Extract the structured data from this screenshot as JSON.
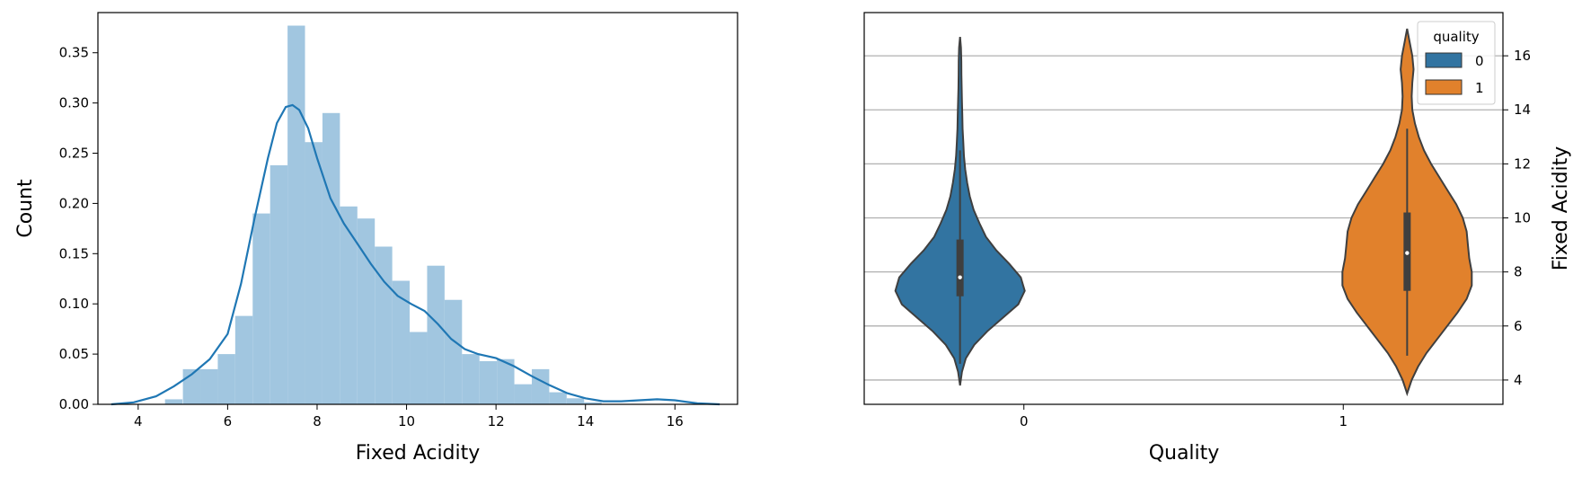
{
  "chart_data": [
    {
      "type": "histogram",
      "xlabel": "Fixed Acidity",
      "ylabel": "Count",
      "xlim": [
        3.1,
        17.4
      ],
      "ylim": [
        0,
        0.39
      ],
      "xticks": [
        4,
        6,
        8,
        10,
        12,
        14,
        16
      ],
      "yticks": [
        0.0,
        0.05,
        0.1,
        0.15,
        0.2,
        0.25,
        0.3,
        0.35
      ],
      "ytick_labels": [
        "0.00",
        "0.05",
        "0.10",
        "0.15",
        "0.20",
        "0.25",
        "0.30",
        "0.35"
      ],
      "bin_width": 0.39,
      "bins": [
        {
          "x": 4.6,
          "value": 0.005
        },
        {
          "x": 5.0,
          "value": 0.035
        },
        {
          "x": 5.39,
          "value": 0.035
        },
        {
          "x": 5.78,
          "value": 0.05
        },
        {
          "x": 6.17,
          "value": 0.088
        },
        {
          "x": 6.56,
          "value": 0.19
        },
        {
          "x": 6.95,
          "value": 0.238
        },
        {
          "x": 7.34,
          "value": 0.377
        },
        {
          "x": 7.73,
          "value": 0.261
        },
        {
          "x": 8.12,
          "value": 0.29
        },
        {
          "x": 8.51,
          "value": 0.197
        },
        {
          "x": 8.9,
          "value": 0.185
        },
        {
          "x": 9.29,
          "value": 0.157
        },
        {
          "x": 9.68,
          "value": 0.123
        },
        {
          "x": 10.07,
          "value": 0.072
        },
        {
          "x": 10.46,
          "value": 0.138
        },
        {
          "x": 10.85,
          "value": 0.104
        },
        {
          "x": 11.24,
          "value": 0.05
        },
        {
          "x": 11.63,
          "value": 0.043
        },
        {
          "x": 12.02,
          "value": 0.045
        },
        {
          "x": 12.41,
          "value": 0.02
        },
        {
          "x": 12.8,
          "value": 0.035
        },
        {
          "x": 13.19,
          "value": 0.012
        },
        {
          "x": 13.58,
          "value": 0.006
        },
        {
          "x": 13.97,
          "value": 0.002
        }
      ],
      "kde": {
        "x": [
          3.4,
          3.9,
          4.4,
          4.8,
          5.2,
          5.6,
          6.0,
          6.3,
          6.6,
          6.9,
          7.1,
          7.3,
          7.45,
          7.6,
          7.8,
          8.0,
          8.3,
          8.6,
          8.9,
          9.2,
          9.5,
          9.8,
          10.1,
          10.4,
          10.7,
          11.0,
          11.3,
          11.6,
          12.0,
          12.4,
          12.8,
          13.2,
          13.6,
          14.0,
          14.4,
          14.8,
          15.2,
          15.6,
          16.0,
          16.5,
          17.0
        ],
        "y": [
          0.0,
          0.002,
          0.008,
          0.018,
          0.03,
          0.045,
          0.07,
          0.12,
          0.185,
          0.245,
          0.28,
          0.296,
          0.298,
          0.293,
          0.275,
          0.245,
          0.205,
          0.18,
          0.16,
          0.14,
          0.122,
          0.108,
          0.1,
          0.093,
          0.08,
          0.065,
          0.055,
          0.05,
          0.046,
          0.038,
          0.028,
          0.019,
          0.011,
          0.006,
          0.003,
          0.003,
          0.004,
          0.005,
          0.004,
          0.001,
          0.0
        ]
      },
      "colors": {
        "bars": "#a1c6e0",
        "kde": "#1f77b4"
      }
    },
    {
      "type": "violin",
      "xlabel": "Quality",
      "ylabel": "Fixed Acidity",
      "categories": [
        "0",
        "1"
      ],
      "ylim": [
        3.1,
        17.6
      ],
      "yticks": [
        4,
        6,
        8,
        10,
        12,
        14,
        16
      ],
      "grid": true,
      "legend_title": "quality",
      "legend_position": "upper right",
      "series": [
        {
          "name": "0",
          "color": "#3274a1",
          "min": 4.6,
          "q1": 7.1,
          "median": 7.8,
          "q3": 9.2,
          "whisker_high": 12.5,
          "profile_y": [
            3.8,
            4.3,
            4.8,
            5.3,
            5.8,
            6.3,
            6.8,
            7.3,
            7.8,
            8.3,
            8.8,
            9.3,
            9.8,
            10.3,
            10.8,
            11.3,
            11.8,
            12.3,
            12.8,
            13.3,
            13.8,
            14.3,
            14.8,
            15.3,
            15.8,
            16.3,
            16.7
          ],
          "profile_halfwidth": [
            0.0,
            0.03,
            0.09,
            0.22,
            0.42,
            0.66,
            0.9,
            1.0,
            0.94,
            0.76,
            0.56,
            0.4,
            0.3,
            0.21,
            0.15,
            0.11,
            0.08,
            0.06,
            0.05,
            0.04,
            0.035,
            0.03,
            0.025,
            0.022,
            0.02,
            0.015,
            0.0
          ]
        },
        {
          "name": "1",
          "color": "#e1812c",
          "min": 4.9,
          "q1": 7.3,
          "median": 8.7,
          "q3": 10.2,
          "whisker_high": 13.3,
          "profile_y": [
            3.5,
            4.0,
            4.5,
            5.0,
            5.5,
            6.0,
            6.5,
            7.0,
            7.5,
            8.0,
            8.5,
            9.0,
            9.5,
            10.0,
            10.5,
            11.0,
            11.5,
            12.0,
            12.5,
            13.0,
            13.5,
            14.0,
            14.5,
            15.0,
            15.5,
            16.0,
            16.5,
            17.0
          ],
          "profile_halfwidth": [
            0.0,
            0.07,
            0.17,
            0.3,
            0.46,
            0.62,
            0.78,
            0.92,
            1.0,
            1.0,
            0.96,
            0.94,
            0.92,
            0.86,
            0.76,
            0.63,
            0.5,
            0.37,
            0.26,
            0.18,
            0.12,
            0.08,
            0.07,
            0.08,
            0.1,
            0.08,
            0.04,
            0.0
          ]
        }
      ]
    }
  ]
}
